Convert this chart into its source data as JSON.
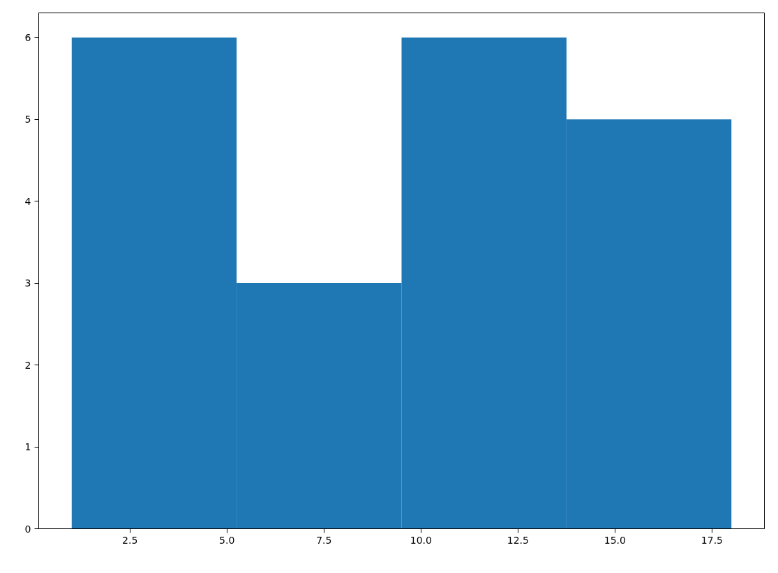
{
  "chart_data": {
    "type": "histogram",
    "bins": [
      1,
      5.25,
      9.5,
      13.75,
      18
    ],
    "values": [
      6,
      3,
      6,
      5
    ],
    "color": "#1f77b4",
    "xlim": [
      0.15,
      18.85
    ],
    "ylim": [
      0,
      6.3
    ],
    "xticks": [
      {
        "value": 2.5,
        "label": "2.5"
      },
      {
        "value": 5,
        "label": "5.0"
      },
      {
        "value": 7.5,
        "label": "7.5"
      },
      {
        "value": 10,
        "label": "10.0"
      },
      {
        "value": 12.5,
        "label": "12.5"
      },
      {
        "value": 15,
        "label": "15.0"
      },
      {
        "value": 17.5,
        "label": "17.5"
      }
    ],
    "yticks": [
      0,
      1,
      2,
      3,
      4,
      5,
      6
    ],
    "grid": false
  }
}
